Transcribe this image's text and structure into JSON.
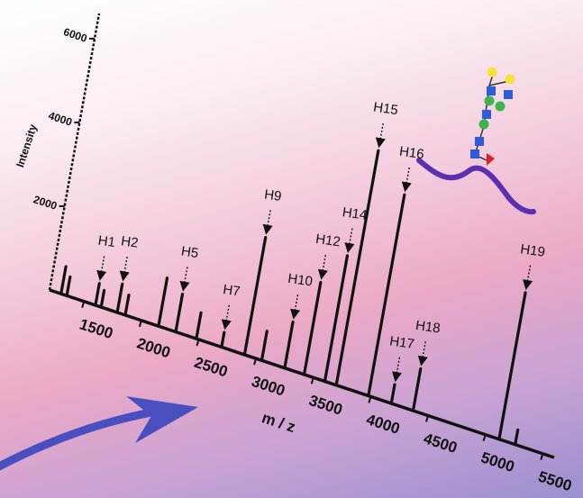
{
  "chart_data": {
    "type": "line",
    "title": "",
    "xlabel": "m / z",
    "ylabel": "Intensity",
    "xlim": [
      1200,
      5600
    ],
    "ylim": [
      0,
      6600
    ],
    "x_ticks": [
      1500,
      2000,
      2500,
      3000,
      3500,
      4000,
      4500,
      5000,
      5500
    ],
    "x_tick_labels": [
      "1500",
      "2000",
      "2500",
      "3000",
      "3500",
      "4000",
      "4500",
      "5000",
      "5500"
    ],
    "y_ticks": [
      2000,
      4000,
      6000
    ],
    "y_tick_labels": [
      "2000",
      "4000",
      "6000"
    ],
    "peaks": [
      {
        "x": 1300,
        "y": 650
      },
      {
        "x": 1350,
        "y": 450
      },
      {
        "x": 1600,
        "y": 520,
        "label": "H1"
      },
      {
        "x": 1650,
        "y": 400
      },
      {
        "x": 1790,
        "y": 680,
        "label": "H2"
      },
      {
        "x": 1860,
        "y": 480
      },
      {
        "x": 2150,
        "y": 1150
      },
      {
        "x": 2300,
        "y": 900,
        "label": "H5"
      },
      {
        "x": 2480,
        "y": 620
      },
      {
        "x": 2700,
        "y": 350,
        "label": "H7"
      },
      {
        "x": 2900,
        "y": 2800,
        "label": "H9"
      },
      {
        "x": 3050,
        "y": 700
      },
      {
        "x": 3250,
        "y": 1100,
        "label": "H10"
      },
      {
        "x": 3420,
        "y": 2200,
        "label": "H12"
      },
      {
        "x": 3600,
        "y": 3000,
        "label": "H14"
      },
      {
        "x": 3700,
        "y": 5600,
        "label": "H15"
      },
      {
        "x": 3980,
        "y": 4800,
        "label": "H16"
      },
      {
        "x": 4180,
        "y": 450,
        "label": "H17"
      },
      {
        "x": 4370,
        "y": 1000,
        "label": "H18"
      },
      {
        "x": 5120,
        "y": 3500,
        "label": "H19"
      },
      {
        "x": 5260,
        "y": 350
      }
    ]
  },
  "icons": {
    "background_arrow": "arrow-icon",
    "glycan": "glycan-structure-icon"
  },
  "colors": {
    "arrow": "#4a4fc0",
    "glycan_backbone": "#5a2fb0",
    "mannose": "#2e5bd8",
    "galactose": "#f2e23a",
    "glcnac_alt": "#3cb44b",
    "fucose": "#e02020"
  }
}
